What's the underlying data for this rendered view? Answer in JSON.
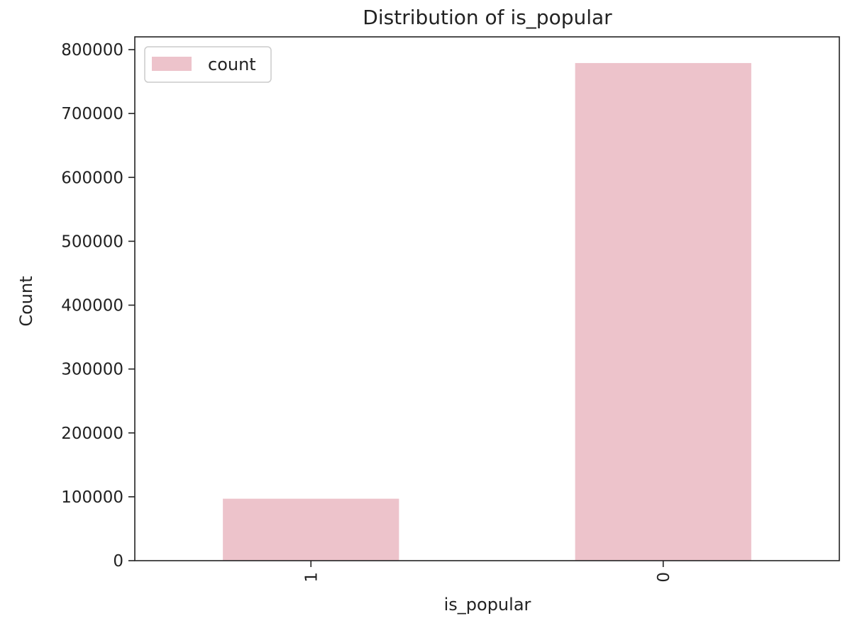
{
  "chart_data": {
    "type": "bar",
    "title": "Distribution of is_popular",
    "xlabel": "is_popular",
    "ylabel": "Count",
    "categories": [
      "1",
      "0"
    ],
    "series": [
      {
        "name": "count",
        "values": [
          97000,
          779000
        ]
      }
    ],
    "ylim": [
      0,
      820000
    ],
    "yticks": [
      0,
      100000,
      200000,
      300000,
      400000,
      500000,
      600000,
      700000,
      800000
    ],
    "ytick_labels": [
      "0",
      "100000",
      "200000",
      "300000",
      "400000",
      "500000",
      "600000",
      "700000",
      "800000"
    ],
    "grid": false,
    "legend_position": "top-left",
    "bar_color": "#edc3cb"
  }
}
